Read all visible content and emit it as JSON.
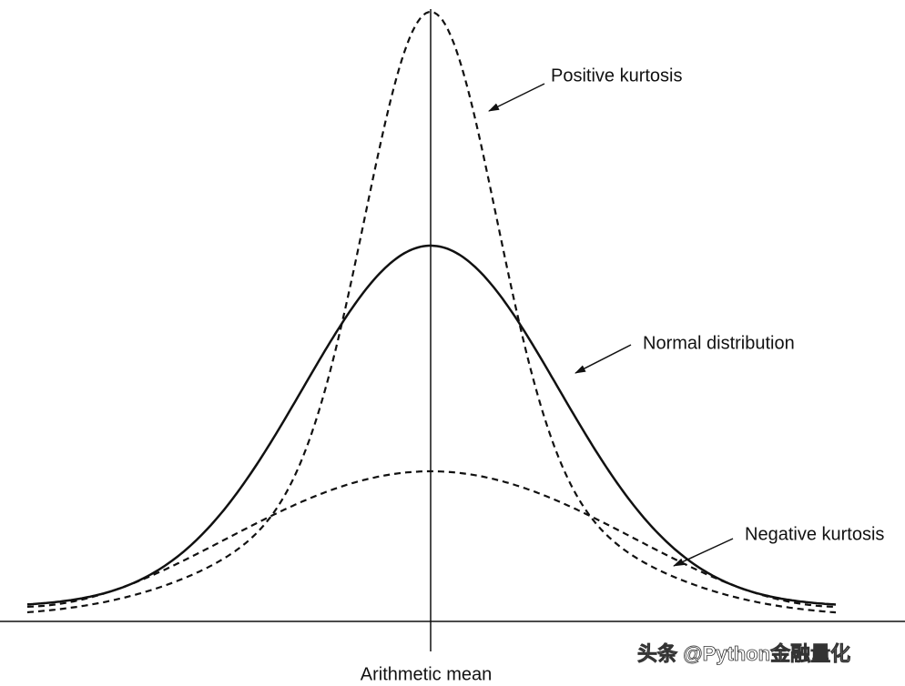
{
  "labels": {
    "positive": "Positive kurtosis",
    "normal": "Normal distribution",
    "negative": "Negative kurtosis",
    "mean": "Arithmetic mean"
  },
  "watermark": "头条 @Python金融量化"
}
